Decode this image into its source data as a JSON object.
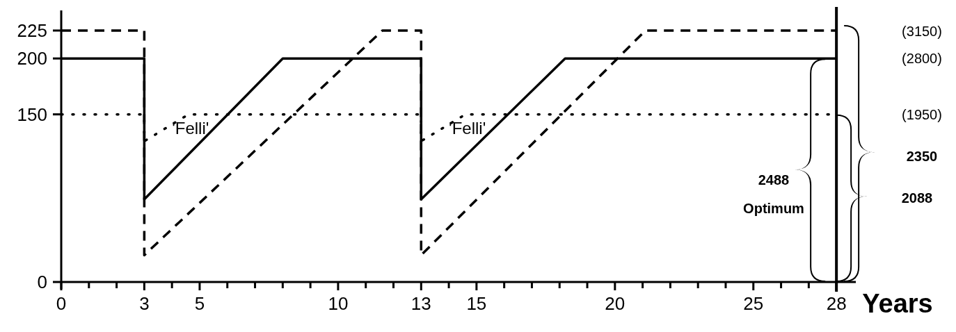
{
  "chart_data": {
    "type": "line",
    "xlabel": "Years",
    "xlim": [
      0,
      28.7
    ],
    "ylim": [
      0,
      243
    ],
    "xticks": [
      0,
      {
        "value": 1,
        "label": null
      },
      {
        "value": 2,
        "label": null
      },
      3,
      {
        "value": 4,
        "label": null
      },
      5,
      {
        "value": 6,
        "label": null
      },
      {
        "value": 7,
        "label": null
      },
      {
        "value": 8,
        "label": null
      },
      {
        "value": 9,
        "label": null
      },
      10,
      {
        "value": 11,
        "label": null
      },
      {
        "value": 12,
        "label": null
      },
      13,
      {
        "value": 14,
        "label": null
      },
      15,
      {
        "value": 16,
        "label": null
      },
      {
        "value": 17,
        "label": null
      },
      {
        "value": 18,
        "label": null
      },
      {
        "value": 19,
        "label": null
      },
      20,
      {
        "value": 21,
        "label": null
      },
      {
        "value": 22,
        "label": null
      },
      {
        "value": 23,
        "label": null
      },
      {
        "value": 24,
        "label": null
      },
      25,
      {
        "value": 26,
        "label": null
      },
      {
        "value": 27,
        "label": null
      },
      28
    ],
    "yticks": [
      0,
      150,
      200,
      225
    ],
    "grid": false,
    "series": [
      {
        "color": "#000000",
        "line_style": "dashed",
        "x": [
          0,
          3,
          3,
          11.6,
          13,
          13,
          21.1,
          28
        ],
        "values": [
          225,
          225,
          24,
          225,
          225,
          24,
          225,
          225
        ]
      },
      {
        "color": "#000000",
        "line_style": "solid",
        "x": [
          0,
          3,
          3,
          8,
          13,
          13,
          18.2,
          28
        ],
        "values": [
          200,
          200,
          74,
          200,
          200,
          74,
          200,
          200
        ]
      },
      {
        "color": "#000000",
        "line_style": "dotted",
        "x": [
          0,
          3,
          3,
          4.6,
          13,
          13,
          14.6,
          28
        ],
        "values": [
          150,
          150,
          126,
          150,
          150,
          126,
          150,
          150
        ]
      }
    ],
    "ref_lines": [
      {
        "axis": "x",
        "value": 28,
        "color": "#000000"
      }
    ],
    "annotations": [
      {
        "text": "'Felli'",
        "x": 4,
        "y": 137
      },
      {
        "text": "'Felli'",
        "x": 14,
        "y": 137
      },
      "(3150)",
      "(2800)",
      "(1950)",
      "2350",
      "2088",
      "2488",
      "Optimum"
    ]
  }
}
